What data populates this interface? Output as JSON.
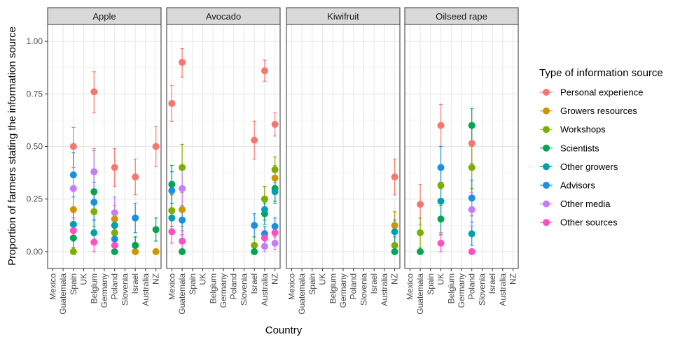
{
  "chart_data": {
    "type": "scatter",
    "xlabel": "Country",
    "ylabel": "Proportion of farmers stating the information source",
    "ylim": [
      -0.08,
      1.08
    ],
    "yticks": [
      "0.00",
      "0.25",
      "0.50",
      "0.75",
      "1.00"
    ],
    "ytick_values": [
      0,
      0.25,
      0.5,
      0.75,
      1.0
    ],
    "categories": [
      "Mexico",
      "Guatemala",
      "Spain",
      "UK",
      "Belgium",
      "Germany",
      "Poland",
      "Slovenia",
      "Israel",
      "Australia",
      "NZ"
    ],
    "legend_title": "Type of information source",
    "legend_position": "right",
    "grid": true,
    "series": [
      {
        "name": "Personal experience",
        "color": "#F8766D"
      },
      {
        "name": "Growers resources",
        "color": "#CD9600"
      },
      {
        "name": "Workshops",
        "color": "#7CAE00"
      },
      {
        "name": "Scientists",
        "color": "#00A651"
      },
      {
        "name": "Other growers",
        "color": "#00A0B0"
      },
      {
        "name": "Advisors",
        "color": "#1B8FE0"
      },
      {
        "name": "Other media",
        "color": "#C77CFF"
      },
      {
        "name": "Other sources",
        "color": "#FF4FC3"
      }
    ],
    "panels": [
      {
        "title": "Apple",
        "points": [
          {
            "s": 0,
            "x": "Spain",
            "y": 0.5,
            "lo": 0.4,
            "hi": 0.59
          },
          {
            "s": 1,
            "x": "Spain",
            "y": 0.2,
            "lo": 0.12,
            "hi": 0.29
          },
          {
            "s": 2,
            "x": "Spain",
            "y": 0.0,
            "lo": 0.0,
            "hi": 0.0
          },
          {
            "s": 3,
            "x": "Spain",
            "y": 0.065,
            "lo": 0.02,
            "hi": 0.11
          },
          {
            "s": 4,
            "x": "Spain",
            "y": 0.13,
            "lo": 0.07,
            "hi": 0.2
          },
          {
            "s": 5,
            "x": "Spain",
            "y": 0.365,
            "lo": 0.26,
            "hi": 0.47
          },
          {
            "s": 6,
            "x": "Spain",
            "y": 0.3,
            "lo": 0.21,
            "hi": 0.4
          },
          {
            "s": 7,
            "x": "Spain",
            "y": 0.1,
            "lo": 0.05,
            "hi": 0.16
          },
          {
            "s": 0,
            "x": "Belgium",
            "y": 0.76,
            "lo": 0.66,
            "hi": 0.855
          },
          {
            "s": 1,
            "x": "Belgium",
            "y": 0.38,
            "lo": 0.28,
            "hi": 0.48
          },
          {
            "s": 2,
            "x": "Belgium",
            "y": 0.19,
            "lo": 0.12,
            "hi": 0.27
          },
          {
            "s": 3,
            "x": "Belgium",
            "y": 0.285,
            "lo": 0.2,
            "hi": 0.37
          },
          {
            "s": 4,
            "x": "Belgium",
            "y": 0.09,
            "lo": 0.04,
            "hi": 0.15
          },
          {
            "s": 5,
            "x": "Belgium",
            "y": 0.235,
            "lo": 0.15,
            "hi": 0.33
          },
          {
            "s": 6,
            "x": "Belgium",
            "y": 0.38,
            "lo": 0.27,
            "hi": 0.49
          },
          {
            "s": 7,
            "x": "Belgium",
            "y": 0.045,
            "lo": 0.0,
            "hi": 0.09
          },
          {
            "s": 0,
            "x": "Poland",
            "y": 0.4,
            "lo": 0.31,
            "hi": 0.49
          },
          {
            "s": 1,
            "x": "Poland",
            "y": 0.155,
            "lo": 0.09,
            "hi": 0.22
          },
          {
            "s": 2,
            "x": "Poland",
            "y": 0.09,
            "lo": 0.04,
            "hi": 0.15
          },
          {
            "s": 3,
            "x": "Poland",
            "y": 0.0,
            "lo": 0.0,
            "hi": 0.0
          },
          {
            "s": 4,
            "x": "Poland",
            "y": 0.125,
            "lo": 0.07,
            "hi": 0.19
          },
          {
            "s": 5,
            "x": "Poland",
            "y": 0.06,
            "lo": 0.02,
            "hi": 0.11
          },
          {
            "s": 6,
            "x": "Poland",
            "y": 0.185,
            "lo": 0.11,
            "hi": 0.26
          },
          {
            "s": 7,
            "x": "Poland",
            "y": 0.03,
            "lo": 0.0,
            "hi": 0.07
          },
          {
            "s": 0,
            "x": "Israel",
            "y": 0.355,
            "lo": 0.27,
            "hi": 0.44
          },
          {
            "s": 1,
            "x": "Israel",
            "y": 0.0,
            "lo": 0.0,
            "hi": 0.0
          },
          {
            "s": 2,
            "x": "Israel",
            "y": 0.03,
            "lo": 0.0,
            "hi": 0.07
          },
          {
            "s": 3,
            "x": "Israel",
            "y": 0.03,
            "lo": 0.0,
            "hi": 0.07
          },
          {
            "s": 5,
            "x": "Israel",
            "y": 0.16,
            "lo": 0.09,
            "hi": 0.23
          },
          {
            "s": 0,
            "x": "NZ",
            "y": 0.5,
            "lo": 0.405,
            "hi": 0.595
          },
          {
            "s": 1,
            "x": "NZ",
            "y": 0.0,
            "lo": 0.0,
            "hi": 0.0
          },
          {
            "s": 3,
            "x": "NZ",
            "y": 0.105,
            "lo": 0.05,
            "hi": 0.16
          }
        ]
      },
      {
        "title": "Avocado",
        "points": [
          {
            "s": 0,
            "x": "Mexico",
            "y": 0.705,
            "lo": 0.62,
            "hi": 0.79
          },
          {
            "s": 1,
            "x": "Mexico",
            "y": 0.195,
            "lo": 0.12,
            "hi": 0.27
          },
          {
            "s": 2,
            "x": "Mexico",
            "y": 0.195,
            "lo": 0.12,
            "hi": 0.27
          },
          {
            "s": 3,
            "x": "Mexico",
            "y": 0.32,
            "lo": 0.23,
            "hi": 0.41
          },
          {
            "s": 4,
            "x": "Mexico",
            "y": 0.16,
            "lo": 0.09,
            "hi": 0.23
          },
          {
            "s": 5,
            "x": "Mexico",
            "y": 0.29,
            "lo": 0.2,
            "hi": 0.38
          },
          {
            "s": 7,
            "x": "Mexico",
            "y": 0.095,
            "lo": 0.04,
            "hi": 0.15
          },
          {
            "s": 0,
            "x": "Guatemala",
            "y": 0.9,
            "lo": 0.83,
            "hi": 0.965
          },
          {
            "s": 1,
            "x": "Guatemala",
            "y": 0.2,
            "lo": 0.12,
            "hi": 0.28
          },
          {
            "s": 2,
            "x": "Guatemala",
            "y": 0.4,
            "lo": 0.29,
            "hi": 0.51
          },
          {
            "s": 3,
            "x": "Guatemala",
            "y": 0.0,
            "lo": 0.0,
            "hi": 0.0
          },
          {
            "s": 5,
            "x": "Guatemala",
            "y": 0.15,
            "lo": 0.08,
            "hi": 0.22
          },
          {
            "s": 6,
            "x": "Guatemala",
            "y": 0.3,
            "lo": 0.2,
            "hi": 0.4
          },
          {
            "s": 7,
            "x": "Guatemala",
            "y": 0.05,
            "lo": 0.01,
            "hi": 0.1
          },
          {
            "s": 0,
            "x": "Israel",
            "y": 0.53,
            "lo": 0.44,
            "hi": 0.62
          },
          {
            "s": 2,
            "x": "Israel",
            "y": 0.03,
            "lo": 0.0,
            "hi": 0.07
          },
          {
            "s": 3,
            "x": "Israel",
            "y": 0.0,
            "lo": 0.0,
            "hi": 0.0
          },
          {
            "s": 5,
            "x": "Israel",
            "y": 0.125,
            "lo": 0.07,
            "hi": 0.18
          },
          {
            "s": 0,
            "x": "Australia",
            "y": 0.86,
            "lo": 0.81,
            "hi": 0.91
          },
          {
            "s": 1,
            "x": "Australia",
            "y": 0.25,
            "lo": 0.19,
            "hi": 0.31
          },
          {
            "s": 2,
            "x": "Australia",
            "y": 0.25,
            "lo": 0.19,
            "hi": 0.31
          },
          {
            "s": 3,
            "x": "Australia",
            "y": 0.18,
            "lo": 0.13,
            "hi": 0.23
          },
          {
            "s": 4,
            "x": "Australia",
            "y": 0.2,
            "lo": 0.15,
            "hi": 0.25
          },
          {
            "s": 5,
            "x": "Australia",
            "y": 0.085,
            "lo": 0.05,
            "hi": 0.12
          },
          {
            "s": 6,
            "x": "Australia",
            "y": 0.025,
            "lo": 0.0,
            "hi": 0.05
          },
          {
            "s": 7,
            "x": "Australia",
            "y": 0.065,
            "lo": 0.03,
            "hi": 0.1
          },
          {
            "s": 0,
            "x": "NZ",
            "y": 0.605,
            "lo": 0.55,
            "hi": 0.66
          },
          {
            "s": 1,
            "x": "NZ",
            "y": 0.35,
            "lo": 0.29,
            "hi": 0.41
          },
          {
            "s": 2,
            "x": "NZ",
            "y": 0.39,
            "lo": 0.33,
            "hi": 0.45
          },
          {
            "s": 3,
            "x": "NZ",
            "y": 0.3,
            "lo": 0.24,
            "hi": 0.36
          },
          {
            "s": 4,
            "x": "NZ",
            "y": 0.285,
            "lo": 0.23,
            "hi": 0.34
          },
          {
            "s": 5,
            "x": "NZ",
            "y": 0.12,
            "lo": 0.08,
            "hi": 0.16
          },
          {
            "s": 6,
            "x": "NZ",
            "y": 0.04,
            "lo": 0.01,
            "hi": 0.07
          },
          {
            "s": 7,
            "x": "NZ",
            "y": 0.09,
            "lo": 0.05,
            "hi": 0.13
          }
        ]
      },
      {
        "title": "Kiwifruit",
        "points": [
          {
            "s": 0,
            "x": "NZ",
            "y": 0.355,
            "lo": 0.27,
            "hi": 0.44
          },
          {
            "s": 1,
            "x": "NZ",
            "y": 0.125,
            "lo": 0.07,
            "hi": 0.19
          },
          {
            "s": 2,
            "x": "NZ",
            "y": 0.03,
            "lo": 0.0,
            "hi": 0.07
          },
          {
            "s": 3,
            "x": "NZ",
            "y": 0.0,
            "lo": 0.0,
            "hi": 0.0
          },
          {
            "s": 4,
            "x": "NZ",
            "y": 0.095,
            "lo": 0.04,
            "hi": 0.15
          }
        ]
      },
      {
        "title": "Oilseed rape",
        "points": [
          {
            "s": 0,
            "x": "Guatemala",
            "y": 0.225,
            "lo": 0.13,
            "hi": 0.32
          },
          {
            "s": 2,
            "x": "Guatemala",
            "y": 0.09,
            "lo": 0.02,
            "hi": 0.16
          },
          {
            "s": 3,
            "x": "Guatemala",
            "y": 0.0,
            "lo": 0.0,
            "hi": 0.0
          },
          {
            "s": 0,
            "x": "UK",
            "y": 0.6,
            "lo": 0.5,
            "hi": 0.7
          },
          {
            "s": 2,
            "x": "UK",
            "y": 0.315,
            "lo": 0.22,
            "hi": 0.41
          },
          {
            "s": 3,
            "x": "UK",
            "y": 0.155,
            "lo": 0.08,
            "hi": 0.23
          },
          {
            "s": 4,
            "x": "UK",
            "y": 0.24,
            "lo": 0.15,
            "hi": 0.33
          },
          {
            "s": 5,
            "x": "UK",
            "y": 0.4,
            "lo": 0.3,
            "hi": 0.5
          },
          {
            "s": 7,
            "x": "UK",
            "y": 0.04,
            "lo": 0.0,
            "hi": 0.09
          },
          {
            "s": 0,
            "x": "Poland",
            "y": 0.515,
            "lo": 0.42,
            "hi": 0.61
          },
          {
            "s": 2,
            "x": "Poland",
            "y": 0.4,
            "lo": 0.3,
            "hi": 0.5
          },
          {
            "s": 3,
            "x": "Poland",
            "y": 0.6,
            "lo": 0.51,
            "hi": 0.68
          },
          {
            "s": 4,
            "x": "Poland",
            "y": 0.085,
            "lo": 0.03,
            "hi": 0.14
          },
          {
            "s": 5,
            "x": "Poland",
            "y": 0.255,
            "lo": 0.17,
            "hi": 0.34
          },
          {
            "s": 6,
            "x": "Poland",
            "y": 0.2,
            "lo": 0.12,
            "hi": 0.28
          },
          {
            "s": 7,
            "x": "Poland",
            "y": 0.0,
            "lo": 0.0,
            "hi": 0.0
          }
        ]
      }
    ]
  }
}
